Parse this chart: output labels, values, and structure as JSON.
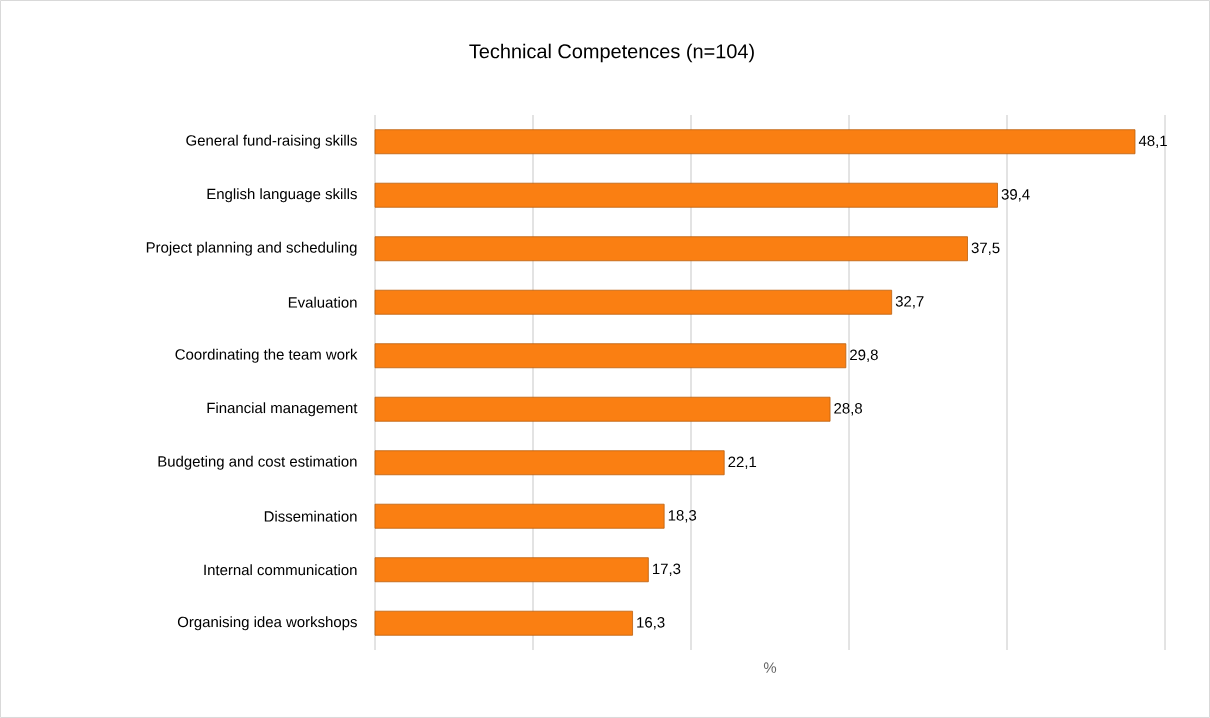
{
  "chart_data": {
    "type": "bar",
    "orientation": "horizontal",
    "title": "Technical Competences (n=104)",
    "xlabel": "%",
    "categories": [
      "General fund-raising skills",
      "English language skills",
      "Project planning and scheduling",
      "Evaluation",
      "Coordinating the team work",
      "Financial management",
      "Budgeting and cost estimation",
      "Dissemination",
      "Internal communication",
      "Organising idea workshops"
    ],
    "values": [
      48.1,
      39.4,
      37.5,
      32.7,
      29.8,
      28.8,
      22.1,
      18.3,
      17.3,
      16.3
    ],
    "value_labels": [
      "48,1",
      "39,4",
      "37,5",
      "32,7",
      "29,8",
      "28,8",
      "22,1",
      "18,3",
      "17,3",
      "16,3"
    ],
    "color": "#fa7f12",
    "xlim": [
      0,
      50
    ],
    "xticks": [
      {
        "value": 0,
        "label": null
      },
      {
        "value": 10,
        "label": null
      },
      {
        "value": 20,
        "label": null
      },
      {
        "value": 30,
        "label": null
      },
      {
        "value": 40,
        "label": null
      },
      {
        "value": 50,
        "label": null
      }
    ],
    "grid": "x",
    "tick_labels": "y"
  }
}
